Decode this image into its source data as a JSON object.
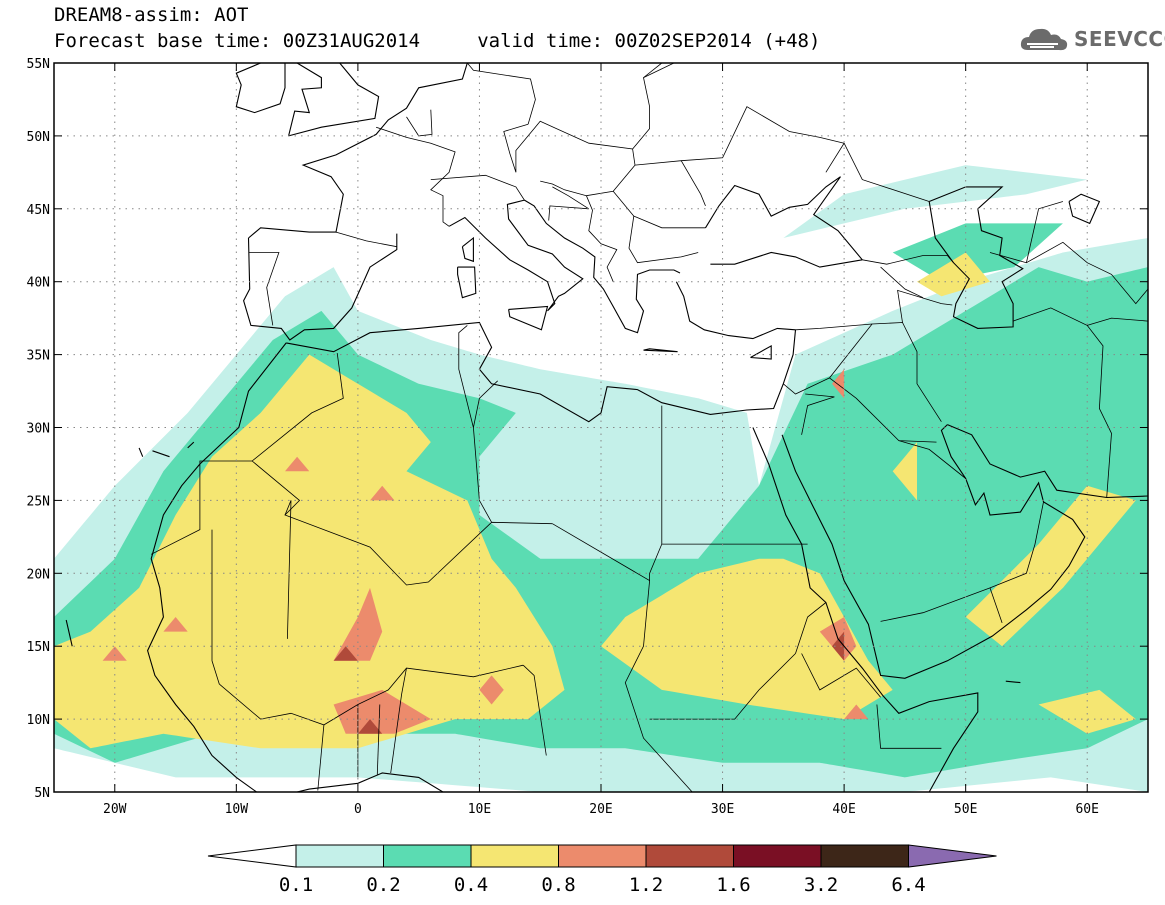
{
  "header": {
    "title_line1": "DREAM8-assim: AOT",
    "title_line2": "Forecast base time: 00Z31AUG2014     valid time: 00Z02SEP2014 (+48)"
  },
  "logo": {
    "text": "SEEVCCC",
    "icon": "cloud-logo-icon",
    "color": "#6b6b6b"
  },
  "map": {
    "variable": "AOT",
    "lon_range": [
      -25,
      65
    ],
    "lat_range": [
      5,
      55
    ],
    "lat_ticks": [
      {
        "value": 55,
        "label": "55N"
      },
      {
        "value": 50,
        "label": "50N"
      },
      {
        "value": 45,
        "label": "45N"
      },
      {
        "value": 40,
        "label": "40N"
      },
      {
        "value": 35,
        "label": "35N"
      },
      {
        "value": 30,
        "label": "30N"
      },
      {
        "value": 25,
        "label": "25N"
      },
      {
        "value": 20,
        "label": "20N"
      },
      {
        "value": 15,
        "label": "15N"
      },
      {
        "value": 10,
        "label": "10N"
      },
      {
        "value": 5,
        "label": "5N"
      }
    ],
    "lon_ticks": [
      {
        "value": -20,
        "label": "20W"
      },
      {
        "value": -10,
        "label": "10W"
      },
      {
        "value": 0,
        "label": "0"
      },
      {
        "value": 10,
        "label": "10E"
      },
      {
        "value": 20,
        "label": "20E"
      },
      {
        "value": 30,
        "label": "30E"
      },
      {
        "value": 40,
        "label": "40E"
      },
      {
        "value": 50,
        "label": "50E"
      },
      {
        "value": 60,
        "label": "60E"
      }
    ],
    "grid": true
  },
  "colorbar": {
    "levels": [
      "0.1",
      "0.2",
      "0.4",
      "0.8",
      "1.2",
      "1.6",
      "3.2",
      "6.4"
    ],
    "colors": [
      "#ffffff",
      "#c4f0e9",
      "#5bdcb2",
      "#f5e672",
      "#ec8b6c",
      "#b04a3a",
      "#7a0f24",
      "#3d2618",
      "#8a6ab0"
    ]
  },
  "chart_data": {
    "type": "heatmap",
    "title": "DREAM8-assim: AOT",
    "xlabel": "",
    "ylabel": "",
    "xlim": [
      -25,
      65
    ],
    "ylim": [
      5,
      55
    ],
    "levels": [
      0.1,
      0.2,
      0.4,
      0.8,
      1.2,
      1.6,
      3.2,
      6.4
    ],
    "regions": [
      {
        "level": 0.1,
        "note": "light cyan",
        "polygons": [
          [
            [
              -25,
              21
            ],
            [
              -20,
              26
            ],
            [
              -14,
              31
            ],
            [
              -10,
              35
            ],
            [
              -6,
              39
            ],
            [
              -2,
              41
            ],
            [
              0,
              38
            ],
            [
              6,
              36
            ],
            [
              10,
              35
            ],
            [
              15,
              34
            ],
            [
              22,
              33
            ],
            [
              28,
              32
            ],
            [
              32,
              31
            ],
            [
              33,
              26
            ],
            [
              36,
              35
            ],
            [
              44,
              38
            ],
            [
              50,
              40
            ],
            [
              58,
              42
            ],
            [
              65,
              43
            ],
            [
              65,
              5
            ],
            [
              57,
              6
            ],
            [
              45,
              5
            ],
            [
              30,
              5
            ],
            [
              15,
              5
            ],
            [
              0,
              6
            ],
            [
              -15,
              6
            ],
            [
              -25,
              8
            ]
          ],
          [
            [
              35,
              43
            ],
            [
              45,
              45
            ],
            [
              55,
              46
            ],
            [
              60,
              47
            ],
            [
              50,
              48
            ],
            [
              40,
              46
            ]
          ]
        ]
      },
      {
        "level": 0.2,
        "note": "green",
        "polygons": [
          [
            [
              -25,
              17
            ],
            [
              -20,
              21
            ],
            [
              -16,
              27
            ],
            [
              -11,
              32
            ],
            [
              -7,
              36
            ],
            [
              -3,
              38
            ],
            [
              0,
              35
            ],
            [
              5,
              33
            ],
            [
              10,
              32
            ],
            [
              13,
              31
            ],
            [
              10,
              28
            ],
            [
              10,
              24
            ],
            [
              15,
              21
            ],
            [
              22,
              21
            ],
            [
              28,
              21
            ],
            [
              33,
              26
            ],
            [
              37,
              33
            ],
            [
              44,
              35
            ],
            [
              50,
              38
            ],
            [
              56,
              41
            ],
            [
              60,
              40
            ],
            [
              65,
              41
            ],
            [
              65,
              10
            ],
            [
              60,
              8
            ],
            [
              52,
              7
            ],
            [
              45,
              6
            ],
            [
              38,
              7
            ],
            [
              30,
              7
            ],
            [
              22,
              8
            ],
            [
              15,
              8
            ],
            [
              8,
              9
            ],
            [
              0,
              9
            ],
            [
              -12,
              9
            ],
            [
              -20,
              7
            ],
            [
              -25,
              9
            ]
          ],
          [
            [
              44,
              42
            ],
            [
              50,
              44
            ],
            [
              58,
              44
            ],
            [
              54,
              41
            ],
            [
              48,
              40
            ]
          ]
        ]
      },
      {
        "level": 0.4,
        "note": "yellow",
        "polygons": [
          [
            [
              -25,
              15
            ],
            [
              -22,
              16
            ],
            [
              -18,
              19
            ],
            [
              -15,
              24
            ],
            [
              -12,
              28
            ],
            [
              -8,
              31
            ],
            [
              -4,
              35
            ],
            [
              0,
              33
            ],
            [
              4,
              31
            ],
            [
              6,
              29
            ],
            [
              4,
              27
            ],
            [
              9,
              25
            ],
            [
              11,
              21
            ],
            [
              13,
              19
            ],
            [
              16,
              15
            ],
            [
              17,
              12
            ],
            [
              14,
              10
            ],
            [
              8,
              10
            ],
            [
              0,
              8
            ],
            [
              -8,
              8
            ],
            [
              -16,
              9
            ],
            [
              -22,
              8
            ],
            [
              -25,
              10
            ]
          ],
          [
            [
              22,
              17
            ],
            [
              28,
              20
            ],
            [
              33,
              21
            ],
            [
              35,
              21
            ],
            [
              38,
              20
            ],
            [
              42,
              14
            ],
            [
              44,
              12
            ],
            [
              40,
              10
            ],
            [
              32,
              11
            ],
            [
              25,
              12
            ],
            [
              20,
              15
            ]
          ],
          [
            [
              50,
              17
            ],
            [
              56,
              22
            ],
            [
              60,
              26
            ],
            [
              64,
              25
            ],
            [
              58,
              19
            ],
            [
              53,
              15
            ]
          ],
          [
            [
              56,
              11
            ],
            [
              61,
              12
            ],
            [
              64,
              10
            ],
            [
              60,
              9
            ]
          ],
          [
            [
              46,
              40
            ],
            [
              50,
              42
            ],
            [
              52,
              40
            ],
            [
              48,
              39
            ]
          ],
          [
            [
              44,
              27
            ],
            [
              46,
              29
            ],
            [
              46,
              25
            ]
          ]
        ]
      },
      {
        "level": 0.8,
        "note": "orange",
        "polygons": [
          [
            [
              -2,
              14
            ],
            [
              0,
              17
            ],
            [
              1,
              19
            ],
            [
              2,
              16
            ],
            [
              1,
              14
            ]
          ],
          [
            [
              -2,
              11
            ],
            [
              2,
              12
            ],
            [
              6,
              10
            ],
            [
              3,
              9
            ],
            [
              -1,
              9
            ]
          ],
          [
            [
              10,
              12
            ],
            [
              11,
              13
            ],
            [
              12,
              12
            ],
            [
              11,
              11
            ]
          ],
          [
            [
              -21,
              14
            ],
            [
              -20,
              15
            ],
            [
              -19,
              14
            ]
          ],
          [
            [
              -16,
              16
            ],
            [
              -15,
              17
            ],
            [
              -14,
              16
            ]
          ],
          [
            [
              -6,
              27
            ],
            [
              -5,
              28
            ],
            [
              -4,
              27
            ]
          ],
          [
            [
              1,
              25
            ],
            [
              2,
              26
            ],
            [
              3,
              25
            ]
          ],
          [
            [
              38,
              16
            ],
            [
              40,
              17
            ],
            [
              41,
              15
            ],
            [
              40,
              14
            ]
          ],
          [
            [
              40,
              10
            ],
            [
              41,
              11
            ],
            [
              42,
              10
            ]
          ],
          [
            [
              39,
              33
            ],
            [
              40,
              34
            ],
            [
              40,
              32
            ]
          ]
        ]
      },
      {
        "level": 1.2,
        "note": "dark red",
        "polygons": [
          [
            [
              -2,
              14
            ],
            [
              -1,
              15
            ],
            [
              0,
              14
            ]
          ],
          [
            [
              0,
              9
            ],
            [
              1,
              10
            ],
            [
              2,
              9
            ]
          ],
          [
            [
              39,
              15
            ],
            [
              40,
              16
            ],
            [
              40,
              14
            ]
          ]
        ]
      }
    ]
  }
}
